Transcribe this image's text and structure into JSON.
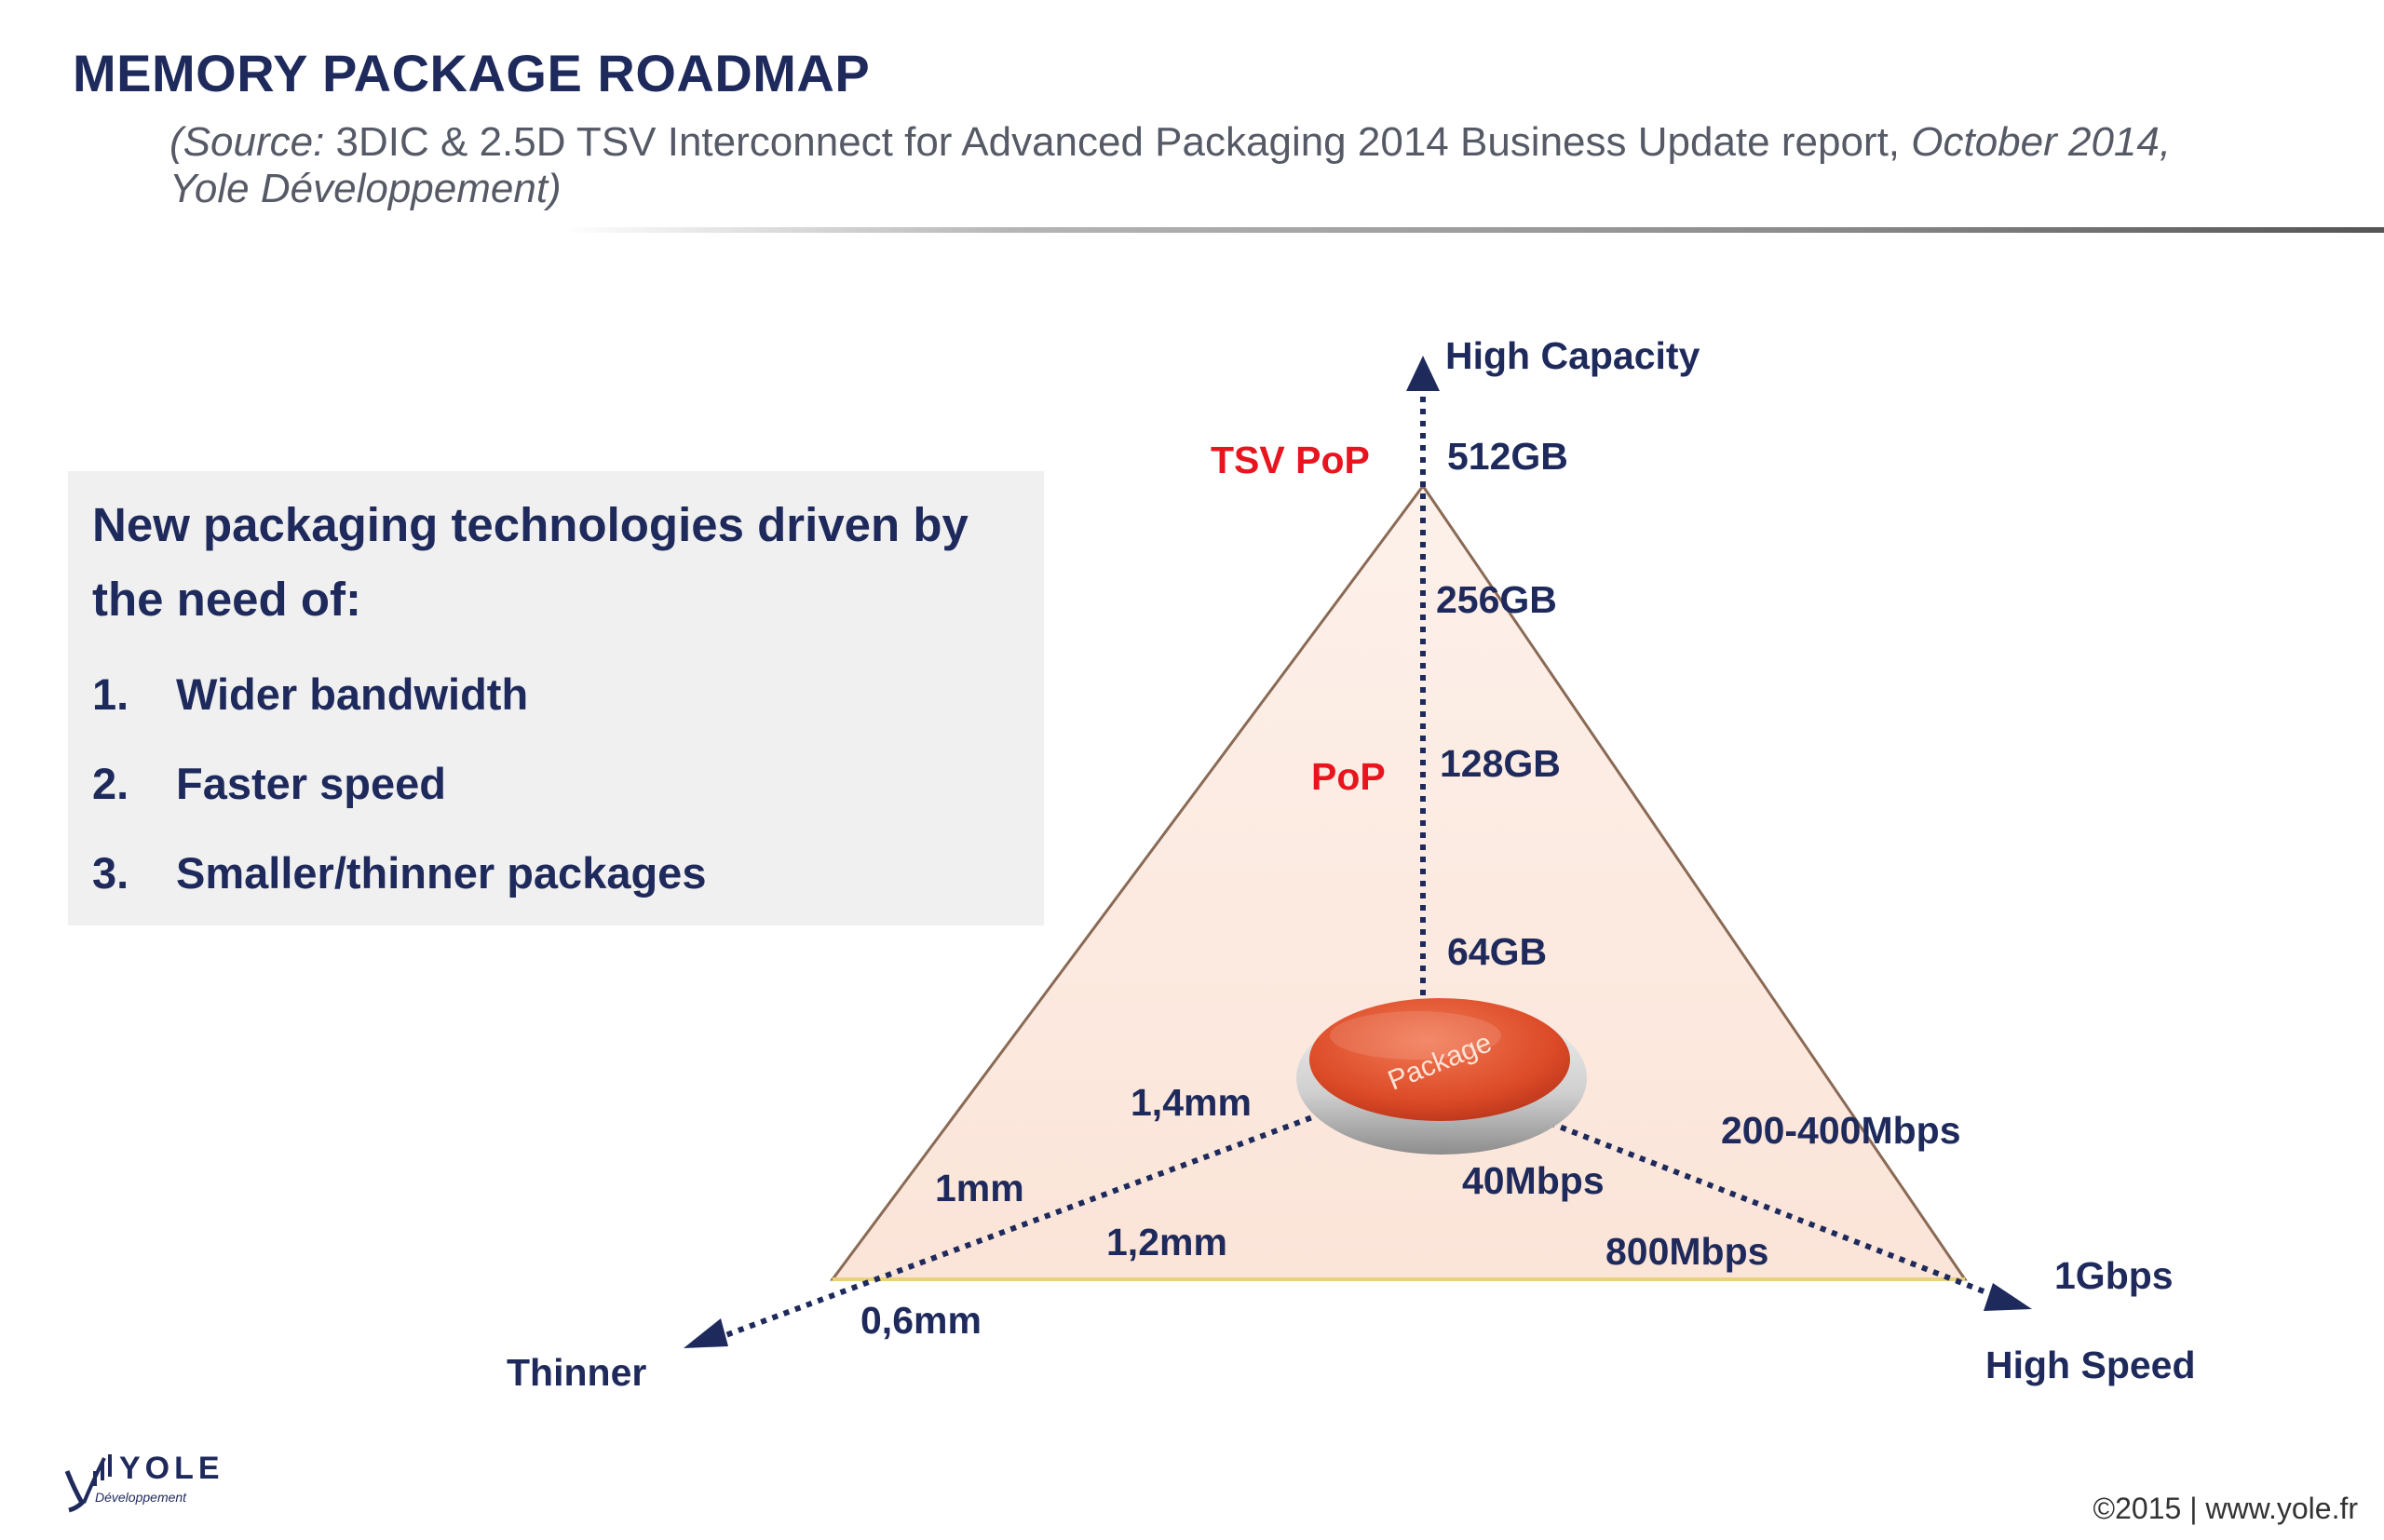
{
  "title": "MEMORY PACKAGE ROADMAP",
  "source": {
    "prefix": "(Source:",
    "report": " 3DIC & 2.5D TSV Interconnect for Advanced Packaging 2014 Business Update report,",
    "date": " October 2014,",
    "publisher": "Yole Développement)"
  },
  "box": {
    "heading": "New packaging technologies driven by the need of:",
    "items": [
      {
        "num": "1.",
        "text": "Wider bandwidth"
      },
      {
        "num": "2.",
        "text": "Faster speed"
      },
      {
        "num": "3.",
        "text": "Smaller/thinner packages"
      }
    ]
  },
  "diagram": {
    "center_label": "Package",
    "axes": {
      "capacity": "High Capacity",
      "speed": "High Speed",
      "thickness": "Thinner"
    },
    "capacity_labels": [
      "512GB",
      "256GB",
      "128GB",
      "64GB"
    ],
    "tech_labels": [
      "TSV PoP",
      "PoP"
    ],
    "speed_labels": [
      "40Mbps",
      "200-400Mbps",
      "800Mbps",
      "1Gbps"
    ],
    "thickness_labels": [
      "1,4mm",
      "1mm",
      "1,2mm",
      "0,6mm"
    ],
    "colors": {
      "navy": "#1f2a5c",
      "red": "#e8141e",
      "triangle_fill": "#fbe8df",
      "package": "#e0522f"
    }
  },
  "footer": {
    "logo": "YOLE",
    "logo_sub": "Développement",
    "copyright": "©2015 | www.yole.fr"
  }
}
